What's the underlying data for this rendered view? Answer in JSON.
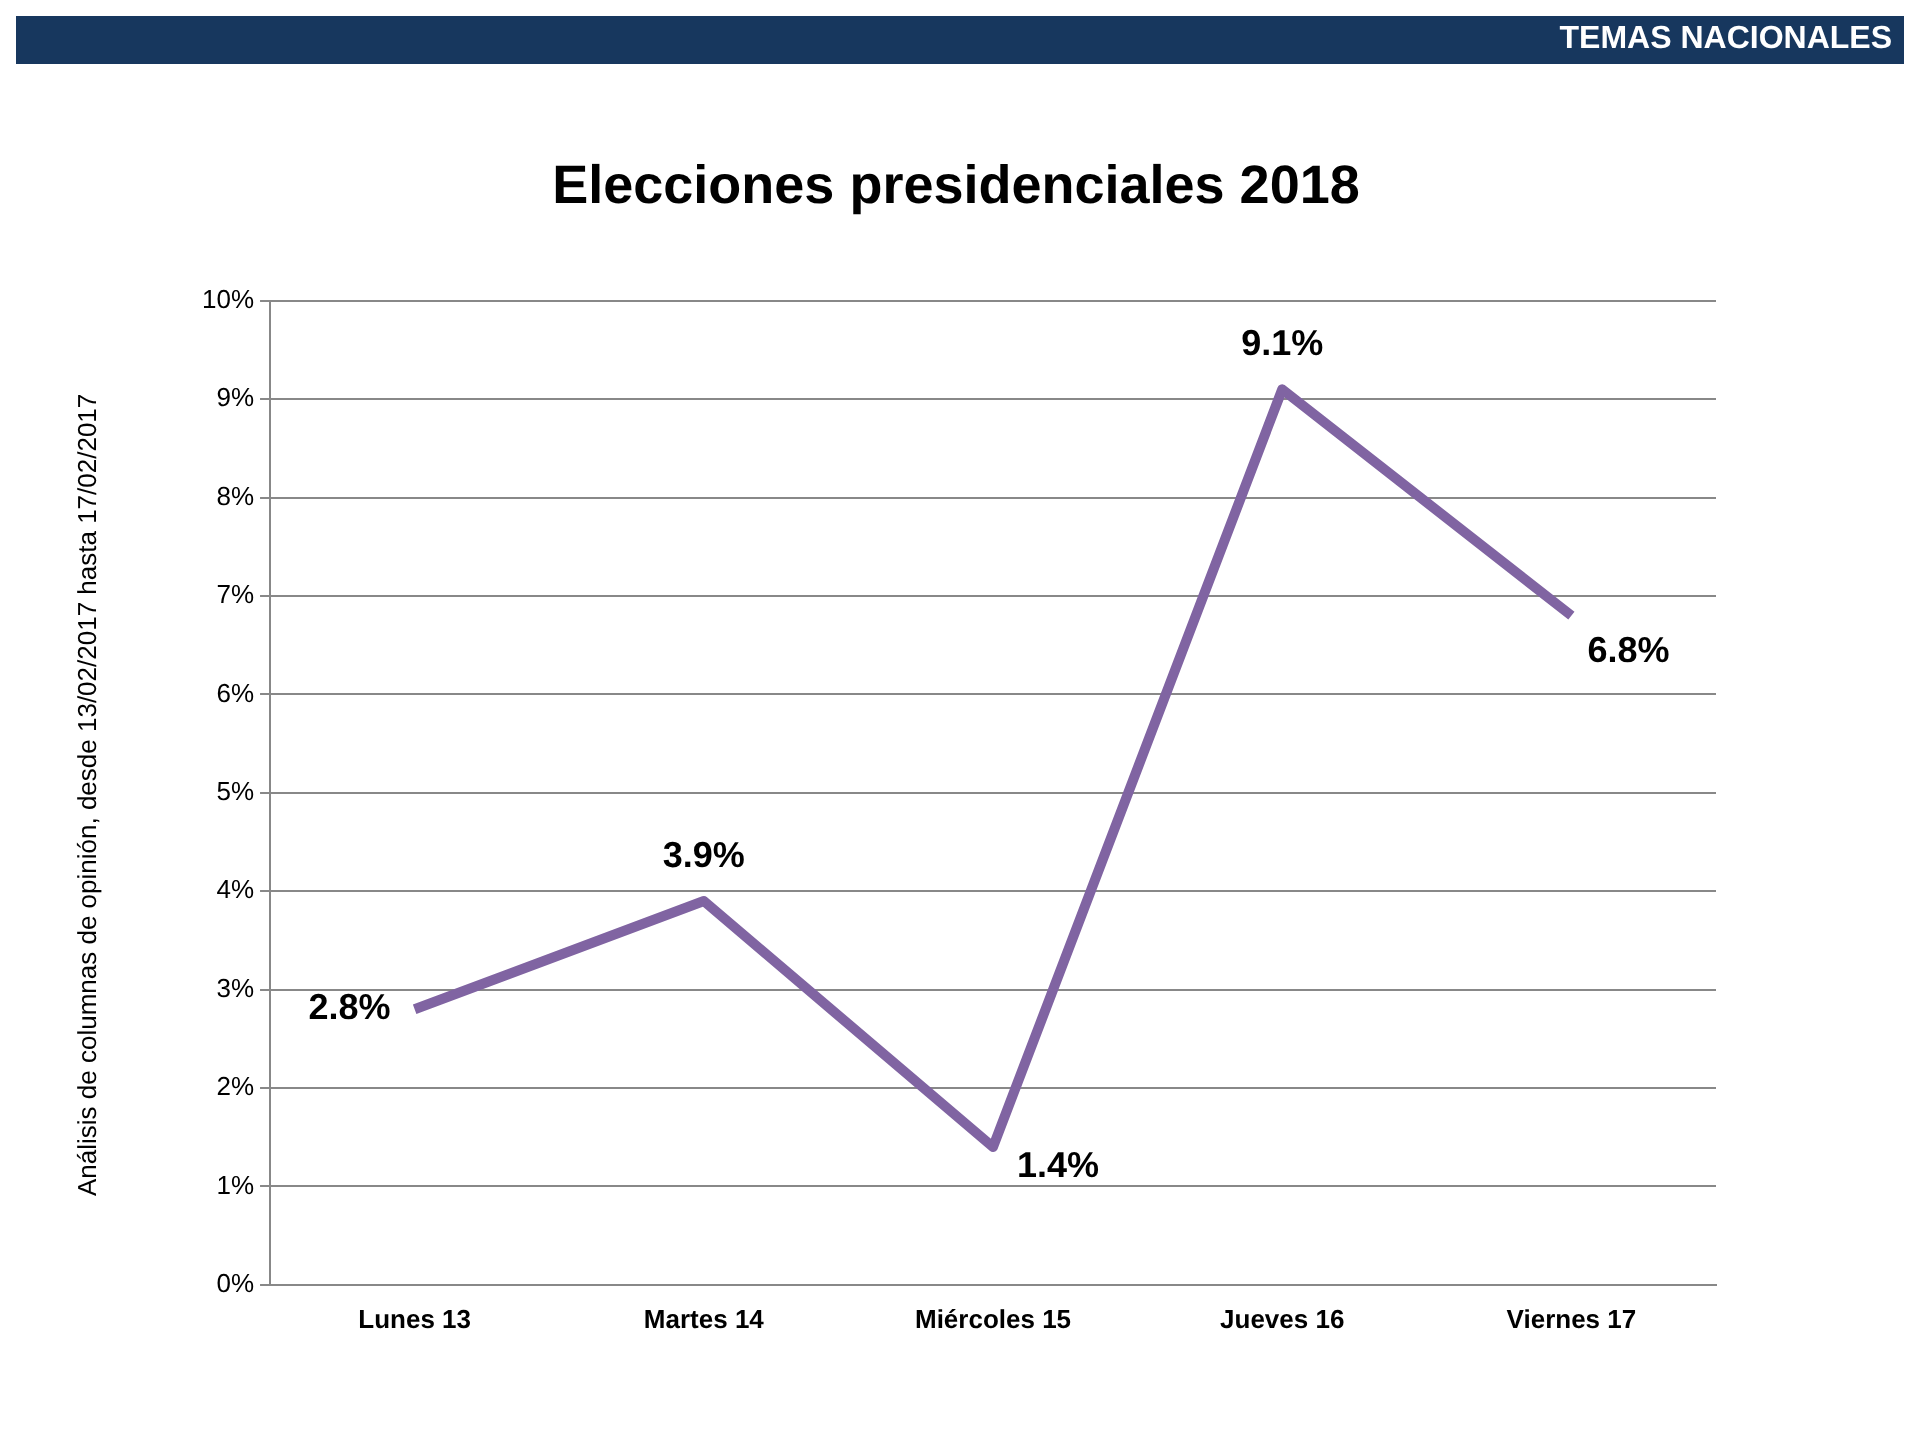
{
  "chart_data": {
    "type": "line",
    "title": "Elecciones presidenciales 2018",
    "annotations": [
      "TEMAS NACIONALES",
      "Análisis de columnas de opinión, desde 13/02/2017 hasta 17/02/2017"
    ],
    "categories": [
      "Lunes 13",
      "Martes 14",
      "Miércoles 15",
      "Jueves 16",
      "Viernes 17"
    ],
    "series": [
      {
        "color": "#8064a2",
        "values": [
          2.8,
          3.9,
          1.4,
          9.1,
          6.8
        ],
        "value_labels": [
          "2.8%",
          "3.9%",
          "1.4%",
          "9.1%",
          "6.8%"
        ]
      }
    ],
    "ylim": [
      0,
      10
    ],
    "yticks": [
      {
        "value": 0,
        "label": "0%"
      },
      {
        "value": 1,
        "label": "1%"
      },
      {
        "value": 2,
        "label": "2%"
      },
      {
        "value": 3,
        "label": "3%"
      },
      {
        "value": 4,
        "label": "4%"
      },
      {
        "value": 5,
        "label": "5%"
      },
      {
        "value": 6,
        "label": "6%"
      },
      {
        "value": 7,
        "label": "7%"
      },
      {
        "value": 8,
        "label": "8%"
      },
      {
        "value": 9,
        "label": "9%"
      },
      {
        "value": 10,
        "label": "10%"
      }
    ],
    "grid": "y",
    "legend": false,
    "marker": "none",
    "line_style": "solid"
  }
}
